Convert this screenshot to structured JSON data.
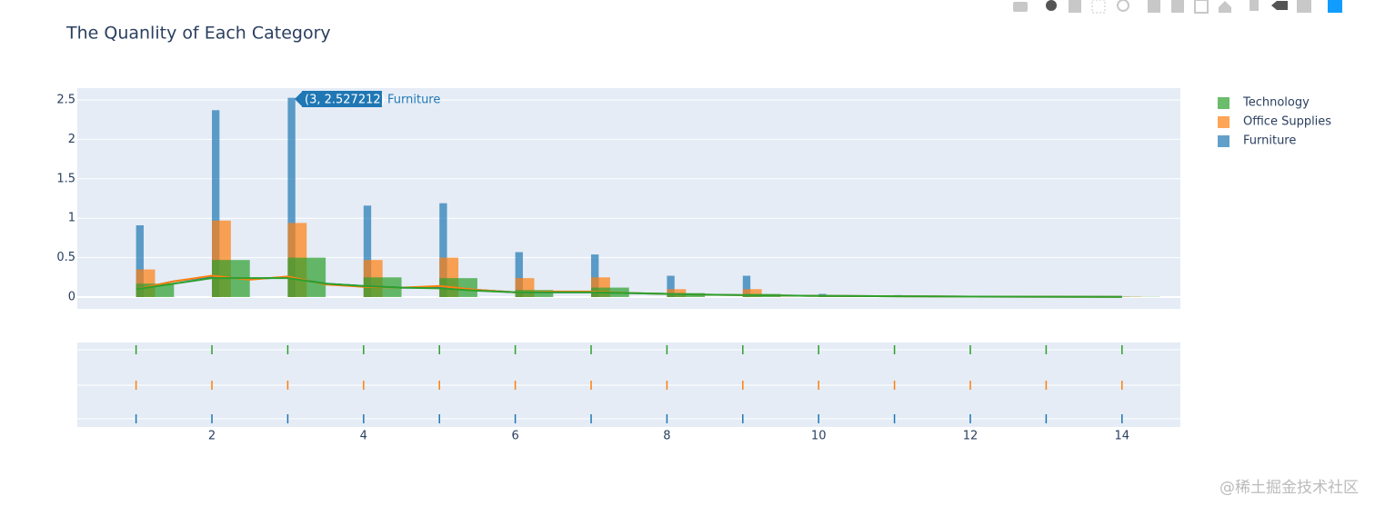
{
  "chart_data": {
    "type": "distplot",
    "title": "The Quanlity of Each Category",
    "series": [
      {
        "name": "Technology",
        "color": "#2ca02c",
        "bin_size": 0.5,
        "x": [
          1,
          2,
          3,
          4,
          5,
          6,
          7,
          8,
          9,
          10,
          11,
          12,
          13,
          14
        ],
        "values": [
          0.17,
          0.47,
          0.5,
          0.25,
          0.24,
          0.09,
          0.12,
          0.05,
          0.04,
          0.02,
          0.01,
          0.005,
          0.005,
          0.003
        ],
        "kde": [
          0.1,
          0.17,
          0.24,
          0.24,
          0.24,
          0.17,
          0.14,
          0.12,
          0.11,
          0.08,
          0.06,
          0.06,
          0.06,
          0.05,
          0.04,
          0.03,
          0.025,
          0.015,
          0.01,
          0.006,
          0.004,
          0.003
        ]
      },
      {
        "name": "Office Supplies",
        "color": "#ff7f0e",
        "bin_size": 0.25,
        "x": [
          1,
          2,
          3,
          4,
          5,
          6,
          7,
          8,
          9,
          10,
          11,
          12,
          13,
          14
        ],
        "values": [
          0.35,
          0.97,
          0.94,
          0.47,
          0.5,
          0.24,
          0.25,
          0.1,
          0.1,
          0.02,
          0.01,
          0.005,
          0.005,
          0.005
        ],
        "kde": [
          0.1,
          0.2,
          0.27,
          0.22,
          0.26,
          0.16,
          0.13,
          0.12,
          0.14,
          0.09,
          0.06,
          0.07,
          0.07,
          0.05,
          0.04,
          0.03,
          0.025,
          0.015,
          0.01,
          0.006,
          0.004,
          0.003
        ]
      },
      {
        "name": "Furniture",
        "color": "#1f77b4",
        "bin_size": 0.1,
        "x": [
          1,
          2,
          3,
          4,
          5,
          6,
          7,
          8,
          9,
          10,
          11,
          12,
          13,
          14
        ],
        "values": [
          0.91,
          2.37,
          2.527212,
          1.16,
          1.19,
          0.57,
          0.54,
          0.27,
          0.27,
          0.04,
          0.025,
          0.01,
          0.01,
          0.005
        ],
        "kde": [
          0.1,
          0.2,
          0.26,
          0.23,
          0.25,
          0.17,
          0.14,
          0.12,
          0.12,
          0.09,
          0.06,
          0.06,
          0.06,
          0.05,
          0.04,
          0.03,
          0.025,
          0.015,
          0.01,
          0.006,
          0.004,
          0.003
        ]
      }
    ],
    "kde_x": [
      1,
      1.5,
      2,
      2.5,
      3,
      3.5,
      4,
      4.5,
      5,
      5.5,
      6,
      6.5,
      7,
      7.5,
      8,
      8.5,
      9,
      10,
      11,
      12,
      13,
      14
    ],
    "xlim": [
      0.225,
      14.77
    ],
    "xticks": [
      2,
      4,
      6,
      8,
      10,
      12,
      14
    ],
    "ylim": [
      -0.15,
      2.65
    ],
    "yticks": [
      0,
      0.5,
      1,
      1.5,
      2,
      2.5
    ],
    "grid": true,
    "tooltip": "(3, 2.527212)"
  },
  "watermark": "@稀土掘金技术社区"
}
